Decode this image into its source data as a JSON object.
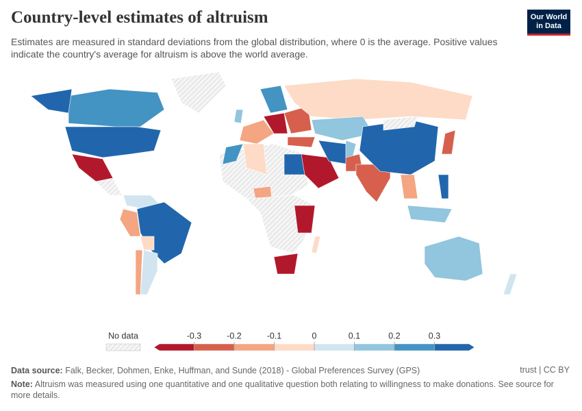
{
  "header": {
    "title": "Country-level estimates of altruism",
    "subtitle": "Estimates are measured in standard deviations from the global distribution, where 0 is the average. Positive values indicate the country's average for altruism is above the world average.",
    "logo": "Our World in Data"
  },
  "legend": {
    "no_data_label": "No data",
    "colors": [
      "#b2182b",
      "#d6604d",
      "#f4a582",
      "#fddbc7",
      "#d1e5f0",
      "#92c5de",
      "#4393c3",
      "#2166ac"
    ],
    "ticks": [
      -0.3,
      -0.2,
      -0.1,
      0,
      0.1,
      0.2,
      0.3
    ]
  },
  "footer": {
    "source_label": "Data source:",
    "source": "Falk, Becker, Dohmen, Enke, Huffman, and Sunde (2018) - Global Preferences Survey (GPS)",
    "license": "trust | CC BY",
    "note_label": "Note:",
    "note": "Altruism was measured using one quantitative and one qualitative question both relating to willingness to make donations. See source for more details."
  }
}
